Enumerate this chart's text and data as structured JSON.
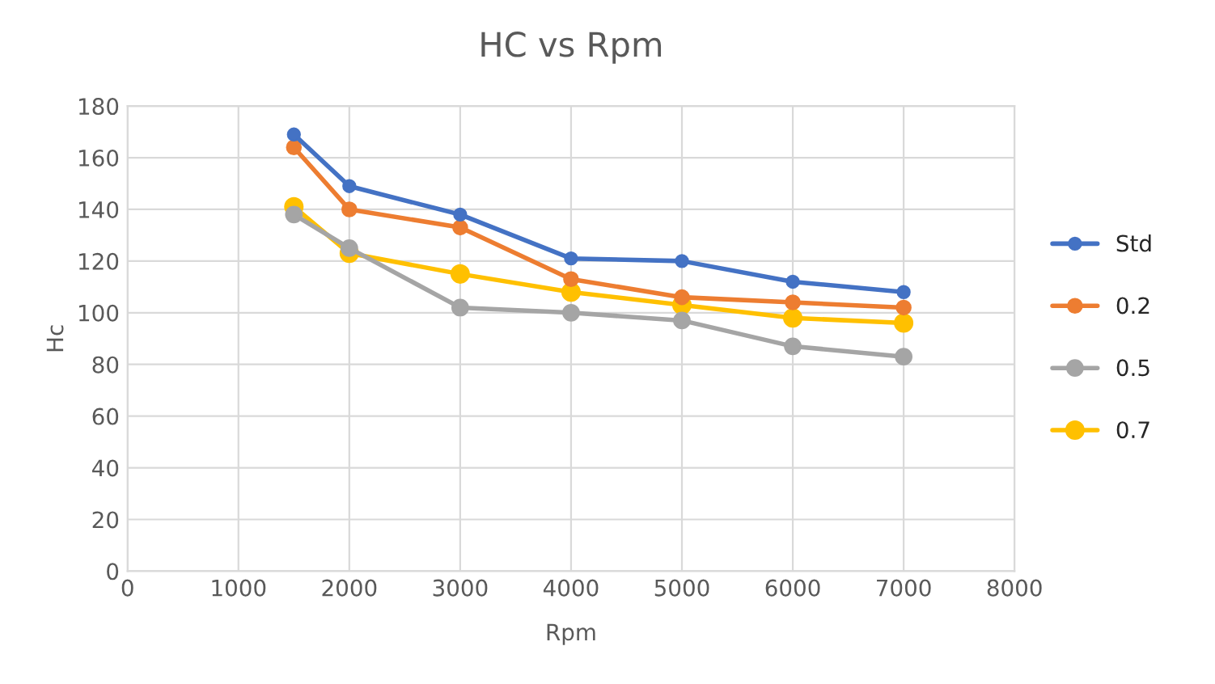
{
  "chart_data": {
    "type": "line",
    "title": "HC vs Rpm",
    "xlabel": "Rpm",
    "ylabel": "Hc",
    "x": [
      1500,
      2000,
      3000,
      4000,
      5000,
      6000,
      7000
    ],
    "series": [
      {
        "name": "Std",
        "color": "#4472c4",
        "values": [
          169,
          149,
          138,
          121,
          120,
          112,
          108
        ]
      },
      {
        "name": "0.2",
        "color": "#ed7d31",
        "values": [
          164,
          140,
          133,
          113,
          106,
          104,
          102
        ]
      },
      {
        "name": "0.5",
        "color": "#a5a5a5",
        "values": [
          138,
          125,
          102,
          100,
          97,
          87,
          83
        ]
      },
      {
        "name": "0.7",
        "color": "#ffc000",
        "values": [
          141,
          123,
          115,
          108,
          103,
          98,
          96
        ]
      }
    ],
    "xlim": [
      0,
      8000
    ],
    "xticks": [
      0,
      1000,
      2000,
      3000,
      4000,
      5000,
      6000,
      7000,
      8000
    ],
    "ylim": [
      0,
      180
    ],
    "yticks": [
      0,
      20,
      40,
      60,
      80,
      100,
      120,
      140,
      160,
      180
    ],
    "grid": true,
    "legend": "right",
    "marker": "circle",
    "line_style": "solid"
  }
}
